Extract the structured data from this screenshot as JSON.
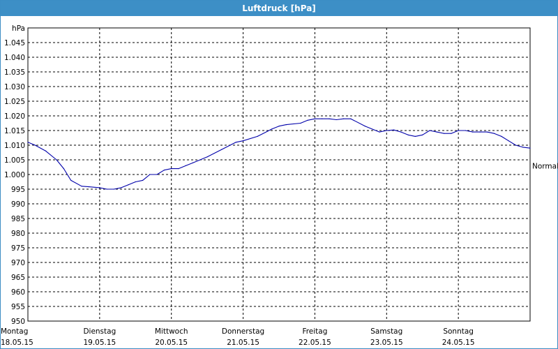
{
  "window": {
    "title": "Luftdruck [hPa]"
  },
  "chart_data": {
    "type": "line",
    "title": "Luftdruck [hPa]",
    "ylabel": "hPa",
    "ylim": [
      950,
      1050
    ],
    "yticks": [
      950,
      955,
      960,
      965,
      970,
      975,
      980,
      985,
      990,
      995,
      1000,
      1005,
      1010,
      1015,
      1020,
      1025,
      1030,
      1035,
      1040,
      1045
    ],
    "ytick_labels": [
      "950",
      "955",
      "960",
      "965",
      "970",
      "975",
      "980",
      "985",
      "990",
      "995",
      "1.000",
      "1.005",
      "1.010",
      "1.015",
      "1.020",
      "1.025",
      "1.030",
      "1.035",
      "1.040",
      "1.045"
    ],
    "xlim": [
      0,
      7
    ],
    "xticks": [
      {
        "day": "Montag",
        "date": "18.05.15"
      },
      {
        "day": "Dienstag",
        "date": "19.05.15"
      },
      {
        "day": "Mittwoch",
        "date": "20.05.15"
      },
      {
        "day": "Donnerstag",
        "date": "21.05.15"
      },
      {
        "day": "Freitag",
        "date": "22.05.15"
      },
      {
        "day": "Samstag",
        "date": "23.05.15"
      },
      {
        "day": "Sonntag",
        "date": "24.05.15"
      }
    ],
    "grid": true,
    "reference_line": {
      "label": "Normal",
      "value": 1003
    },
    "series": [
      {
        "color": "#0000aa",
        "x": [
          0,
          0.1,
          0.25,
          0.4,
          0.5,
          0.6,
          0.75,
          0.85,
          1.0,
          1.1,
          1.2,
          1.3,
          1.4,
          1.5,
          1.6,
          1.7,
          1.8,
          1.9,
          2.0,
          2.1,
          2.2,
          2.3,
          2.5,
          2.7,
          2.9,
          3.0,
          3.2,
          3.4,
          3.5,
          3.6,
          3.8,
          3.9,
          4.0,
          4.1,
          4.2,
          4.3,
          4.4,
          4.5,
          4.7,
          4.9,
          5.0,
          5.1,
          5.2,
          5.3,
          5.4,
          5.5,
          5.6,
          5.7,
          5.8,
          5.9,
          6.0,
          6.1,
          6.2,
          6.3,
          6.4,
          6.5,
          6.6,
          6.7,
          6.8,
          6.9,
          7.0
        ],
        "y": [
          1011,
          1010,
          1008,
          1005,
          1002,
          998,
          996,
          995.8,
          995.5,
          995,
          995,
          995.5,
          996.5,
          997.5,
          998,
          1000,
          1000,
          1001.5,
          1002,
          1002,
          1003,
          1004,
          1006,
          1008.5,
          1011,
          1011.5,
          1013,
          1015.5,
          1016.5,
          1017,
          1017.5,
          1018.5,
          1019,
          1019,
          1019,
          1018.7,
          1019,
          1019,
          1016.5,
          1014.5,
          1015,
          1015.2,
          1014.5,
          1013.5,
          1013,
          1013.5,
          1015,
          1014.5,
          1014,
          1014,
          1015,
          1015,
          1014.5,
          1014.5,
          1014.5,
          1014,
          1013,
          1011.5,
          1010,
          1009.3,
          1009
        ]
      }
    ]
  }
}
